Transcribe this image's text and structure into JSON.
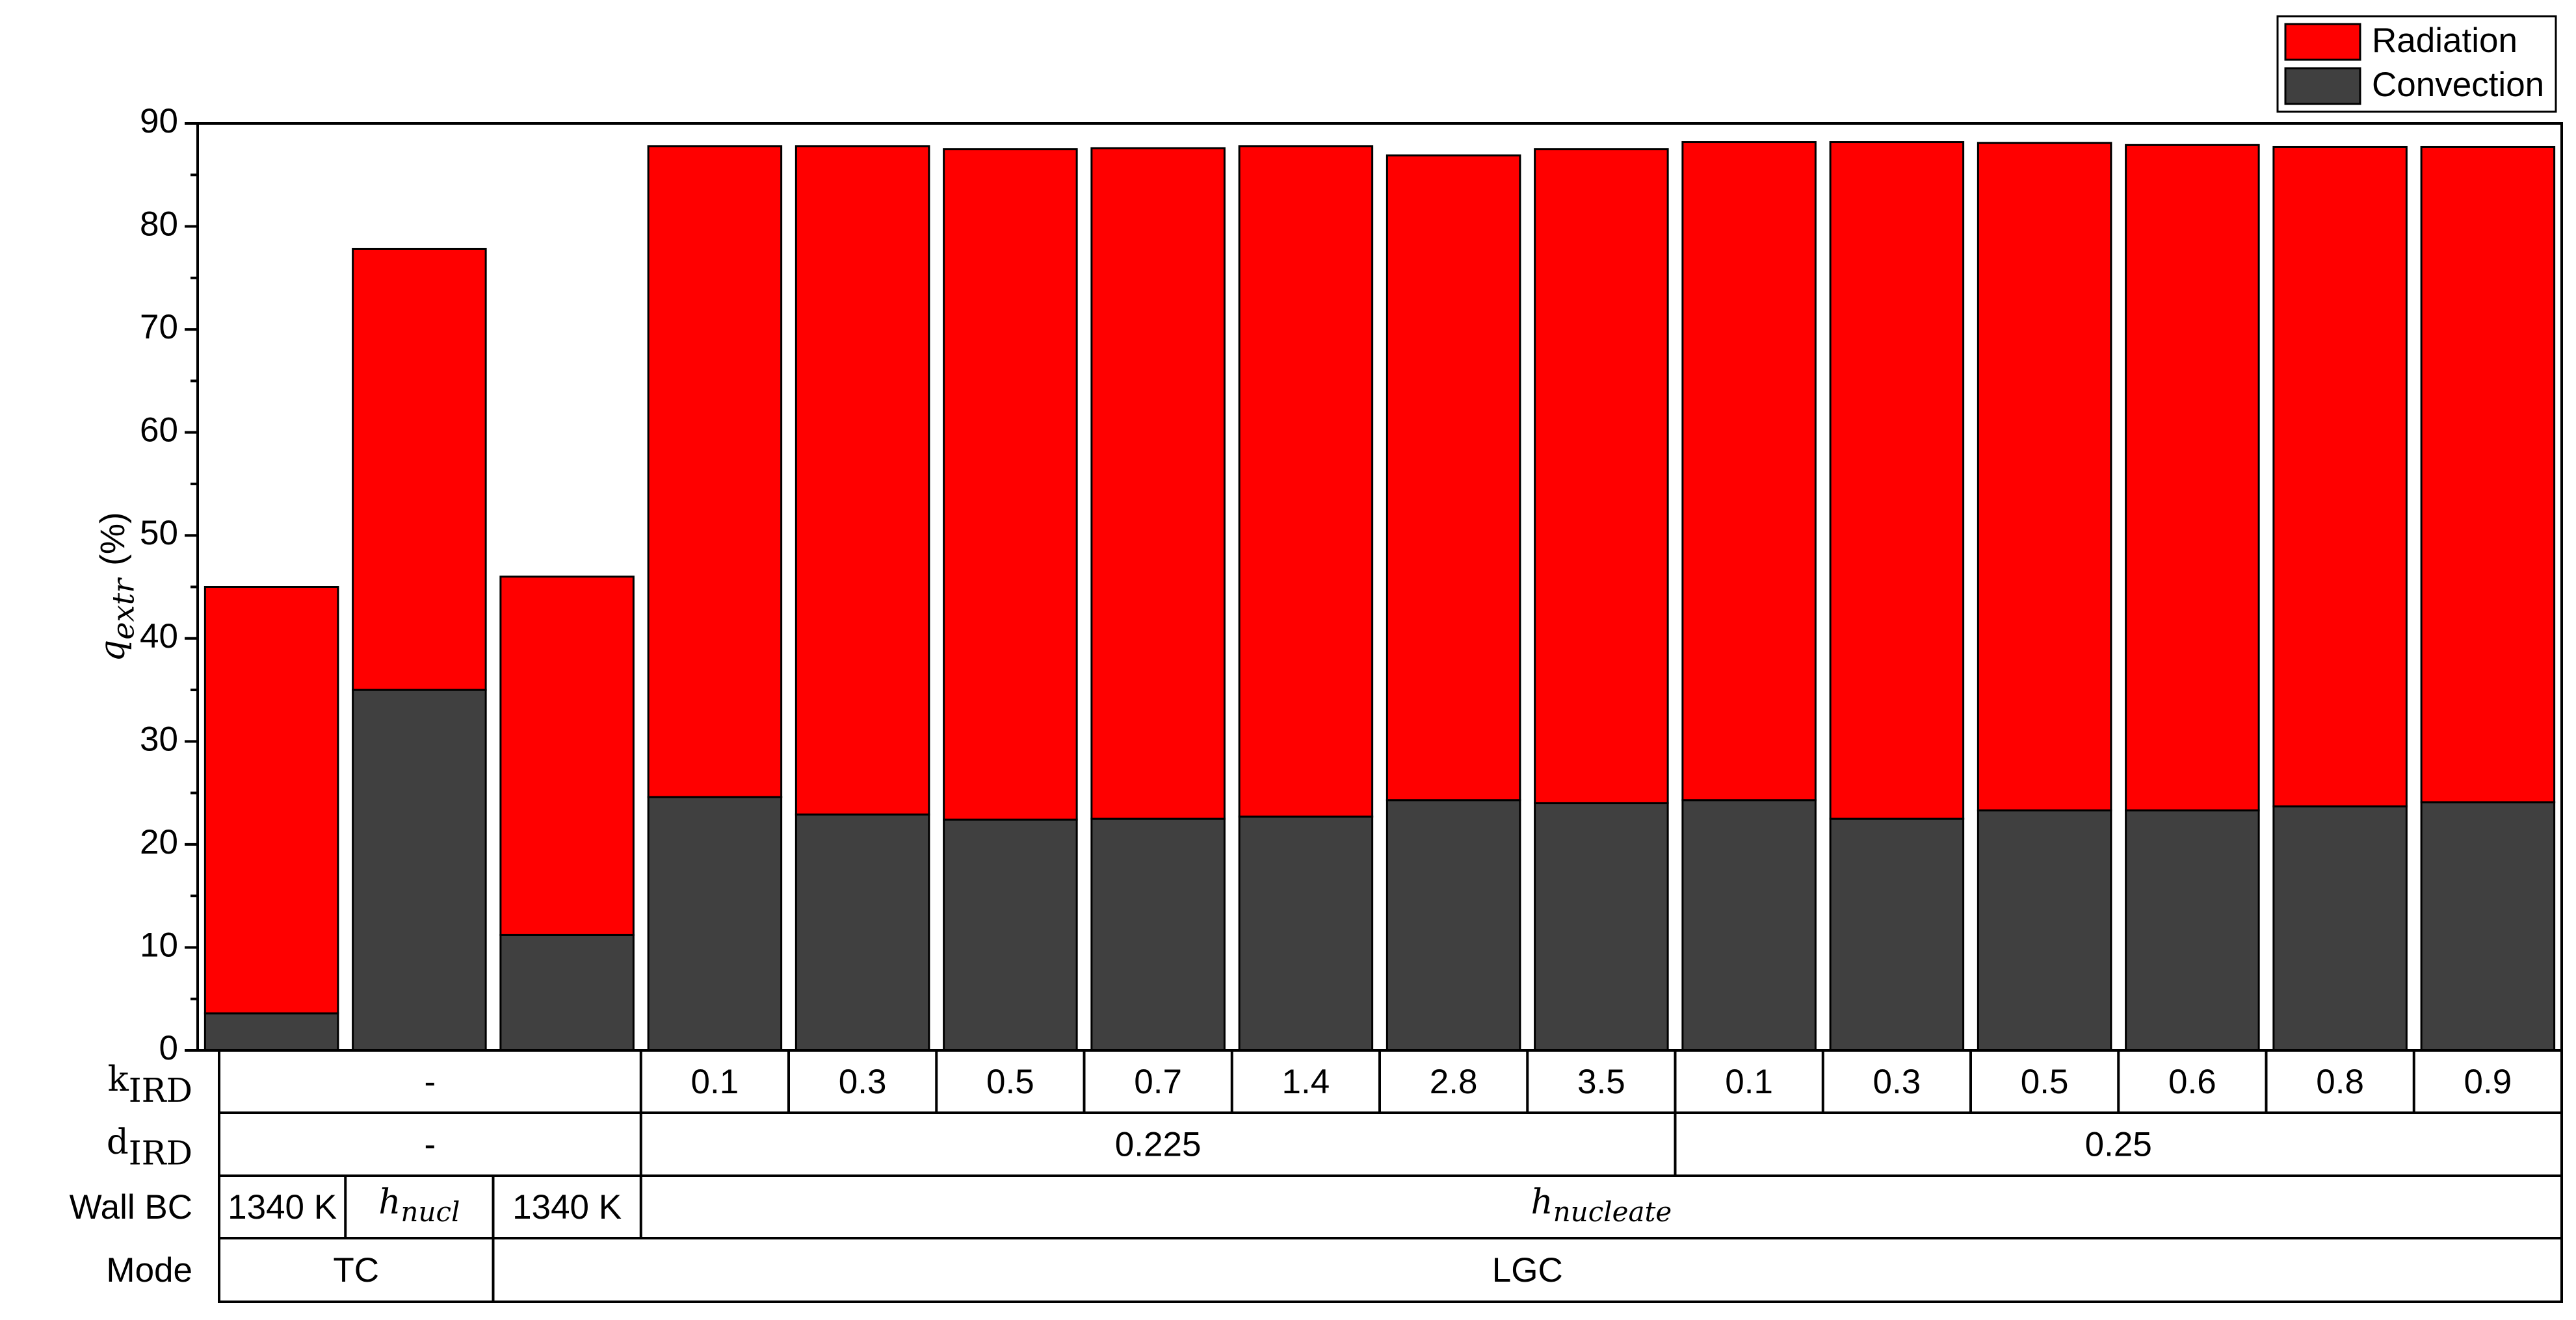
{
  "chart_data": {
    "type": "stacked_bar",
    "ylabel": {
      "main": "q",
      "sub": "extr",
      "unit": "(%)"
    },
    "ylim": [
      0,
      90
    ],
    "yticks": [
      0,
      10,
      20,
      30,
      40,
      50,
      60,
      70,
      80,
      90
    ],
    "yminorticks": [
      5,
      15,
      25,
      35,
      45,
      55,
      65,
      75,
      85
    ],
    "legend": "top-right",
    "series": [
      {
        "name": "Convection",
        "color": "#404040",
        "values": [
          3.6,
          35,
          11.2,
          24.6,
          22.9,
          22.4,
          22.5,
          22.7,
          24.3,
          24,
          24.3,
          22.5,
          23.3,
          23.3,
          23.7,
          24.1
        ]
      },
      {
        "name": "Radiation",
        "color": "#ff0000",
        "values": [
          41.4,
          42.8,
          34.8,
          63.2,
          64.9,
          65.1,
          65.1,
          65.1,
          62.6,
          63.5,
          63.9,
          65.7,
          64.8,
          64.6,
          64,
          63.6
        ]
      }
    ],
    "table": {
      "rows": [
        {
          "label": {
            "main": "k",
            "sub": "IRD"
          },
          "cells": [
            {
              "text": "-",
              "span": 3
            },
            {
              "text": "0.1",
              "span": 1
            },
            {
              "text": "0.3",
              "span": 1
            },
            {
              "text": "0.5",
              "span": 1
            },
            {
              "text": "0.7",
              "span": 1
            },
            {
              "text": "1.4",
              "span": 1
            },
            {
              "text": "2.8",
              "span": 1
            },
            {
              "text": "3.5",
              "span": 1
            },
            {
              "text": "0.1",
              "span": 1
            },
            {
              "text": "0.3",
              "span": 1
            },
            {
              "text": "0.5",
              "span": 1
            },
            {
              "text": "0.6",
              "span": 1
            },
            {
              "text": "0.8",
              "span": 1
            },
            {
              "text": "0.9",
              "span": 1
            }
          ]
        },
        {
          "label": {
            "main": "d",
            "sub": "IRD"
          },
          "cells": [
            {
              "text": "-",
              "span": 3
            },
            {
              "text": "0.225",
              "span": 7
            },
            {
              "text": "0.25",
              "span": 6
            }
          ]
        },
        {
          "label": {
            "text": "Wall BC"
          },
          "cells": [
            {
              "text": "1340 K",
              "span": 1
            },
            {
              "main": "h",
              "sub": "nucl",
              "span": 1
            },
            {
              "text": "1340 K",
              "span": 1
            },
            {
              "main": "h",
              "sub": "nucleate",
              "span": 13
            }
          ]
        },
        {
          "label": {
            "text": "Mode"
          },
          "cells": [
            {
              "text": "TC",
              "span": 2
            },
            {
              "text": "LGC",
              "span": 14
            }
          ]
        }
      ]
    }
  }
}
